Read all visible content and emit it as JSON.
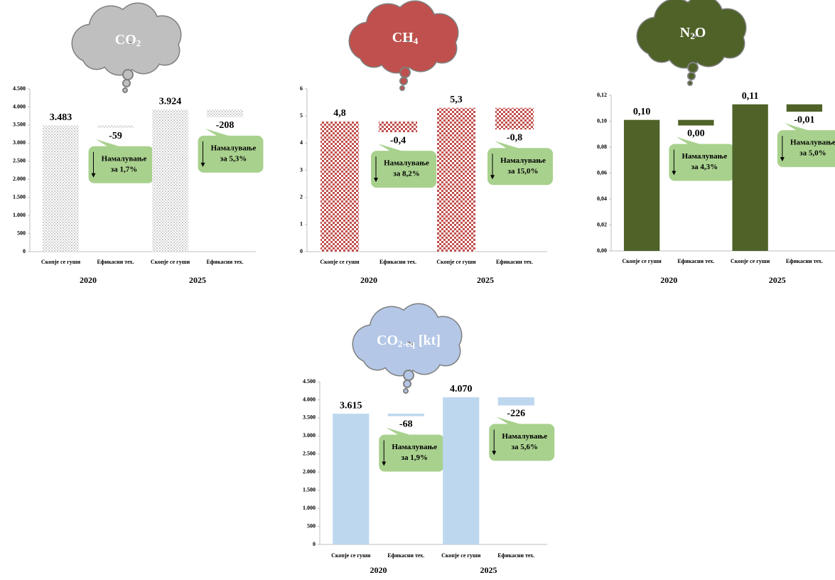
{
  "chart_data": [
    {
      "type": "waterfall",
      "title": [
        "CO",
        "2"
      ],
      "categories": [
        "Скопје се гуши",
        "Ефикасни тех.",
        "Скопје се гуши",
        "Ефикасни тех."
      ],
      "groups": [
        "2020",
        "2025"
      ],
      "values": [
        3483,
        -59,
        3924,
        -208
      ],
      "value_labels": [
        "3.483",
        "-59",
        "3.924",
        "-208"
      ],
      "annotations": [
        [
          "Намалување",
          "за 1,7%"
        ],
        [
          "Намалување",
          "за 5,3%"
        ]
      ],
      "color": "#a6a6a6",
      "cloud_color": "#bfbfbf",
      "pattern": "dots",
      "ylim": [
        0,
        4500
      ],
      "yticks": [
        0,
        500,
        {
          "value": 1000,
          "label": "1.000"
        },
        {
          "value": 1500,
          "label": "1.500"
        },
        {
          "value": 2000,
          "label": "2.000"
        },
        {
          "value": 2500,
          "label": "2.500"
        },
        {
          "value": 3000,
          "label": "3.000"
        },
        {
          "value": 3500,
          "label": "3.500"
        },
        {
          "value": 4000,
          "label": "4.000"
        },
        {
          "value": 4500,
          "label": "4.500"
        }
      ]
    },
    {
      "type": "waterfall",
      "title": [
        "CH",
        "4"
      ],
      "categories": [
        "Скопје се гуши",
        "Ефикасни тех.",
        "Скопје се гуши",
        "Ефикасни тех."
      ],
      "groups": [
        "2020",
        "2025"
      ],
      "values": [
        4.8,
        -0.4,
        5.3,
        -0.8
      ],
      "value_labels": [
        "4,8",
        "-0,4",
        "5,3",
        "-0,8"
      ],
      "annotations": [
        [
          "Намалување",
          "за 8,2%"
        ],
        [
          "Намалување",
          "за 15,0%"
        ]
      ],
      "color": "#c0504d",
      "cloud_color": "#c0504d",
      "pattern": "checker",
      "ylim": [
        0,
        6
      ],
      "yticks": [
        0,
        1,
        2,
        3,
        4,
        5,
        6
      ]
    },
    {
      "type": "waterfall",
      "title": [
        "N",
        "2",
        "O"
      ],
      "categories": [
        "Скопје се гуши",
        "Ефикасни тех.",
        "Скопје се гуши",
        "Ефикасни тех."
      ],
      "groups": [
        "2020",
        "2025"
      ],
      "values": [
        0.101,
        -0.0043,
        0.113,
        -0.0057
      ],
      "value_labels": [
        "0,10",
        "0,00",
        "0,11",
        "-0,01"
      ],
      "annotations": [
        [
          "Намалување",
          "за 4,3%"
        ],
        [
          "Намалување",
          "за 5,0%"
        ]
      ],
      "color": "#4f6228",
      "cloud_color": "#4f6228",
      "pattern": "solid",
      "ylim": [
        0,
        0.12
      ],
      "yticks": [
        {
          "value": 0,
          "label": "0,00"
        },
        {
          "value": 0.02,
          "label": "0,02"
        },
        {
          "value": 0.04,
          "label": "0,04"
        },
        {
          "value": 0.06,
          "label": "0,06"
        },
        {
          "value": 0.08,
          "label": "0,08"
        },
        {
          "value": 0.1,
          "label": "0,10"
        },
        {
          "value": 0.12,
          "label": "0,12"
        }
      ]
    },
    {
      "type": "waterfall",
      "title": [
        "CO",
        "2-eq",
        " [kt]"
      ],
      "categories": [
        "Скопје се гуши",
        "Ефикасни тех.",
        "Скопје се гуши",
        "Ефикасни тех."
      ],
      "groups": [
        "2020",
        "2025"
      ],
      "values": [
        3615,
        -68,
        4070,
        -226
      ],
      "value_labels": [
        "3.615",
        "-68",
        "4.070",
        "-226"
      ],
      "annotations": [
        [
          "Намалување",
          "за 1,9%"
        ],
        [
          "Намалување",
          "за 5,6%"
        ]
      ],
      "color": "#bdd7ee",
      "cloud_color": "#b4c7e7",
      "pattern": "solid",
      "ylim": [
        0,
        4500
      ],
      "yticks": [
        0,
        500,
        {
          "value": 1000,
          "label": "1.000"
        },
        {
          "value": 1500,
          "label": "1.500"
        },
        {
          "value": 2000,
          "label": "2.000"
        },
        {
          "value": 2500,
          "label": "2.500"
        },
        {
          "value": 3000,
          "label": "3.000"
        },
        {
          "value": 3500,
          "label": "3.500"
        },
        {
          "value": 4000,
          "label": "4.000"
        },
        {
          "value": 4500,
          "label": "4.500"
        }
      ]
    }
  ]
}
